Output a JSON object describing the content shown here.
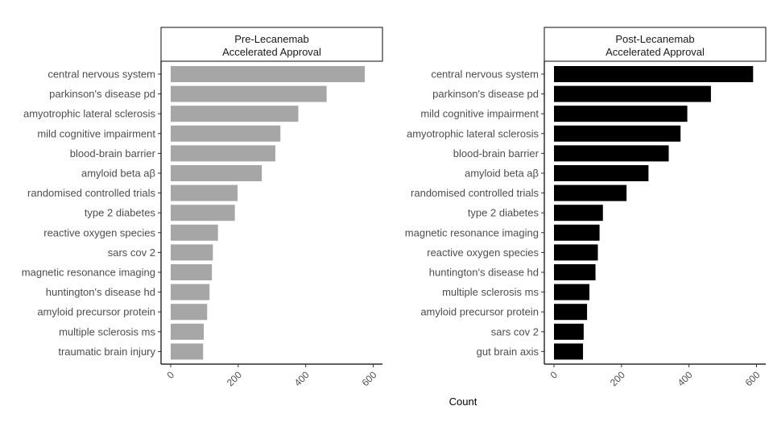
{
  "chart_data": [
    {
      "type": "bar",
      "orientation": "horizontal",
      "facet_title": [
        "Pre-Lecanemab",
        "Accelerated Approval"
      ],
      "categories": [
        "central nervous system",
        "parkinson's disease pd",
        "amyotrophic lateral sclerosis",
        "mild cognitive impairment",
        "blood-brain barrier",
        "amyloid beta aβ",
        "randomised controlled trials",
        "type 2 diabetes",
        "reactive oxygen species",
        "sars cov 2",
        "magnetic resonance imaging",
        "huntington's disease hd",
        "amyloid precursor protein",
        "multiple sclerosis ms",
        "traumatic brain injury"
      ],
      "values": [
        575,
        462,
        378,
        325,
        310,
        270,
        198,
        190,
        140,
        125,
        122,
        115,
        108,
        98,
        96
      ],
      "color": "#a6a6a6",
      "xlim": [
        0,
        600
      ],
      "xticks": [
        0,
        200,
        400,
        600
      ]
    },
    {
      "type": "bar",
      "orientation": "horizontal",
      "facet_title": [
        "Post-Lecanemab",
        "Accelerated Approval"
      ],
      "categories": [
        "central nervous system",
        "parkinson's disease pd",
        "mild cognitive impairment",
        "amyotrophic lateral sclerosis",
        "blood-brain barrier",
        "amyloid beta aβ",
        "randomised controlled trials",
        "type 2 diabetes",
        "magnetic resonance imaging",
        "reactive oxygen species",
        "huntington's disease hd",
        "multiple sclerosis ms",
        "amyloid precursor protein",
        "sars cov 2",
        "gut brain axis"
      ],
      "values": [
        590,
        465,
        395,
        375,
        340,
        280,
        215,
        145,
        135,
        130,
        123,
        105,
        98,
        88,
        86
      ],
      "color": "#000000",
      "xlim": [
        0,
        600
      ],
      "xticks": [
        0,
        200,
        400,
        600
      ]
    }
  ],
  "xlabel": "Count"
}
